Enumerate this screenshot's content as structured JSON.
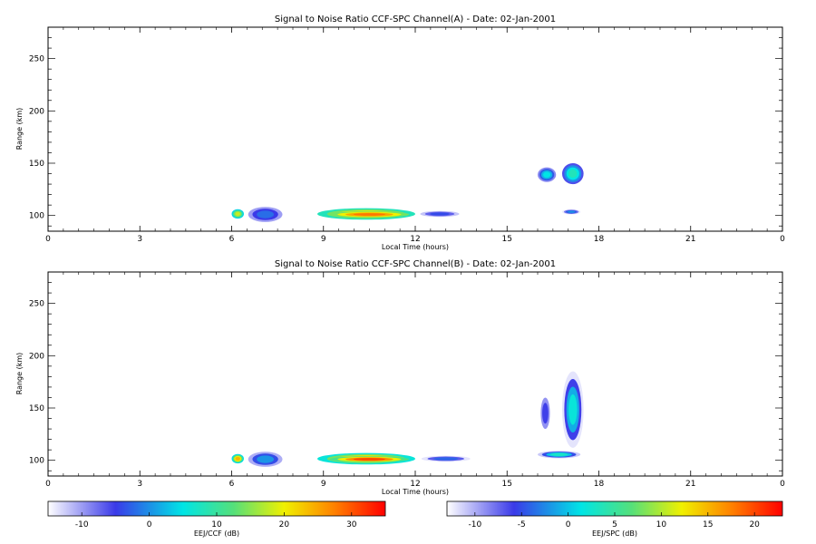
{
  "chart_data": [
    {
      "type": "heatmap",
      "title": "Signal to Noise Ratio CCF-SPC Channel(A) - Date: 02-Jan-2001",
      "xlabel": "Local Time (hours)",
      "ylabel": "Range (km)",
      "xlim": [
        0,
        24
      ],
      "ylim": [
        85,
        280
      ],
      "xticks": [
        "0",
        "3",
        "6",
        "9",
        "12",
        "15",
        "18",
        "21",
        "0"
      ],
      "yticks": [
        100,
        150,
        200,
        250
      ],
      "blobs": [
        {
          "x0": 6.0,
          "x1": 6.4,
          "y0": 97,
          "y1": 106,
          "val": 18
        },
        {
          "x0": 6.4,
          "x1": 7.8,
          "y0": 92,
          "y1": 110,
          "val": -2
        },
        {
          "x0": 8.8,
          "x1": 12.0,
          "y0": 96,
          "y1": 107,
          "val": 22
        },
        {
          "x0": 9.2,
          "x1": 11.8,
          "y0": 98,
          "y1": 104,
          "val": 28
        },
        {
          "x0": 12.0,
          "x1": 13.6,
          "y0": 98,
          "y1": 105,
          "val": -4
        },
        {
          "x0": 16.0,
          "x1": 16.6,
          "y0": 132,
          "y1": 146,
          "val": 5
        },
        {
          "x0": 16.8,
          "x1": 17.5,
          "y0": 130,
          "y1": 150,
          "val": 8
        },
        {
          "x0": 16.8,
          "x1": 17.4,
          "y0": 101,
          "y1": 106,
          "val": 0
        }
      ]
    },
    {
      "type": "heatmap",
      "title": "Signal to Noise Ratio CCF-SPC Channel(B) - Date: 02-Jan-2001",
      "xlabel": "Local Time (hours)",
      "ylabel": "Range (km)",
      "xlim": [
        0,
        24
      ],
      "ylim": [
        85,
        280
      ],
      "xticks": [
        "0",
        "3",
        "6",
        "9",
        "12",
        "15",
        "18",
        "21",
        "0"
      ],
      "yticks": [
        100,
        150,
        200,
        250
      ],
      "blobs": [
        {
          "x0": 6.0,
          "x1": 6.4,
          "y0": 97,
          "y1": 106,
          "val": 15
        },
        {
          "x0": 6.4,
          "x1": 7.8,
          "y0": 92,
          "y1": 110,
          "val": -2
        },
        {
          "x0": 8.8,
          "x1": 12.0,
          "y0": 96,
          "y1": 107,
          "val": 16
        },
        {
          "x0": 9.2,
          "x1": 11.8,
          "y0": 98,
          "y1": 104,
          "val": 20
        },
        {
          "x0": 12.0,
          "x1": 14.0,
          "y0": 98,
          "y1": 105,
          "val": -4
        },
        {
          "x0": 16.0,
          "x1": 16.5,
          "y0": 120,
          "y1": 170,
          "val": -6
        },
        {
          "x0": 16.8,
          "x1": 17.5,
          "y0": 112,
          "y1": 185,
          "val": 2
        },
        {
          "x0": 16.0,
          "x1": 17.4,
          "y0": 102,
          "y1": 109,
          "val": 3
        }
      ]
    }
  ],
  "colorbars": [
    {
      "label": "EEJ/CCF (dB)",
      "ticks": [
        "-10",
        "0",
        "10",
        "20",
        "30"
      ],
      "min": -15,
      "max": 35
    },
    {
      "label": "EEJ/SPC (dB)",
      "ticks": [
        "-10",
        "-5",
        "0",
        "5",
        "10",
        "15",
        "20"
      ],
      "min": -13,
      "max": 23
    }
  ],
  "colors": [
    "#ffffff",
    "#3a3ae8",
    "#00e5e5",
    "#55e07a",
    "#f0f000",
    "#ff8000",
    "#ff0000"
  ]
}
